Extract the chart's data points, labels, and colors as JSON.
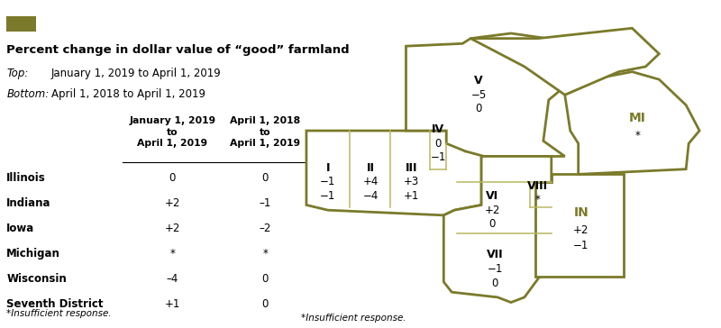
{
  "title": "Percent change in dollar value of “good” farmland",
  "swatch_color": "#7a7a2a",
  "top_label": "Top:",
  "top_desc": "January 1, 2019 to April 1, 2019",
  "bottom_label": "Bottom:",
  "bottom_desc": "April 1, 2018 to April 1, 2019",
  "col1_header": "January 1, 2019\nto\nApril 1, 2019",
  "col2_header": "April 1, 2018\nto\nApril 1, 2019",
  "rows": [
    {
      "state": "Illinois",
      "col1": "0",
      "col2": "0"
    },
    {
      "state": "Indiana",
      "col1": "+2",
      "col2": "–1"
    },
    {
      "state": "Iowa",
      "col1": "+2",
      "col2": "–2"
    },
    {
      "state": "Michigan",
      "col1": "*",
      "col2": "*"
    },
    {
      "state": "Wisconsin",
      "col1": "–4",
      "col2": "0"
    },
    {
      "state": "Seventh District",
      "col1": "+1",
      "col2": "0"
    }
  ],
  "footnote": "*Insufficient response.",
  "map_color": "#7a7a2a",
  "map_color_light": "#b8b860"
}
